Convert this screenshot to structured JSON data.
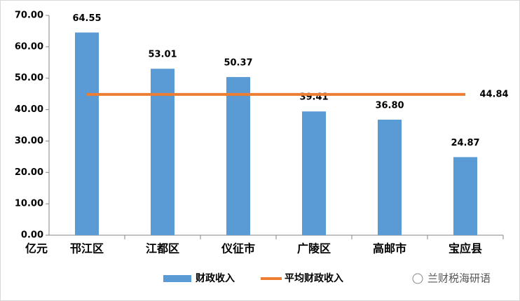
{
  "chart_data": {
    "type": "bar",
    "y_unit": "亿元",
    "categories": [
      "邗江区",
      "江都区",
      "仪征市",
      "广陵区",
      "高邮市",
      "宝应县"
    ],
    "series": [
      {
        "name": "财政收入",
        "color": "#5b9bd5",
        "values": [
          64.55,
          53.01,
          50.37,
          39.41,
          36.8,
          24.87
        ],
        "value_labels": [
          "64.55",
          "53.01",
          "50.37",
          "39.41",
          "36.80",
          "24.87"
        ]
      },
      {
        "name": "平均财政收入",
        "type": "line",
        "color": "#ed7d31",
        "values": [
          44.84,
          44.84,
          44.84,
          44.84,
          44.84,
          44.84
        ]
      }
    ],
    "ylim": [
      0,
      70
    ],
    "yticks": [
      {
        "value": 0,
        "label": "0.00"
      },
      {
        "value": 10,
        "label": "10.00"
      },
      {
        "value": 20,
        "label": "20.00"
      },
      {
        "value": 30,
        "label": "30.00"
      },
      {
        "value": 40,
        "label": "40.00"
      },
      {
        "value": 50,
        "label": "50.00"
      },
      {
        "value": 60,
        "label": "60.00"
      },
      {
        "value": 70,
        "label": "70.00"
      }
    ],
    "grid": false,
    "legend": "bottom",
    "watermark": "兰财税海研语"
  }
}
